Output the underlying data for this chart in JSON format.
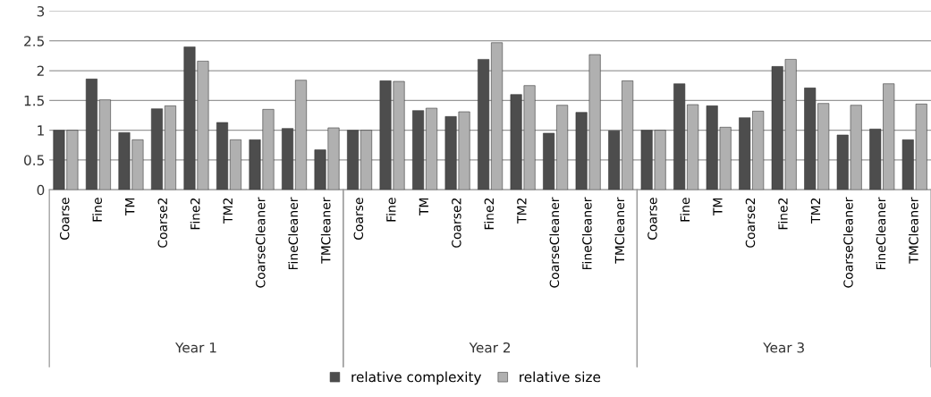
{
  "chart_data": {
    "type": "bar",
    "categories": [
      "Coarse",
      "Fine",
      "TM",
      "Coarse2",
      "Fine2",
      "TM2",
      "CoarseCleaner",
      "FineCleaner",
      "TMCleaner",
      "Coarse",
      "Fine",
      "TM",
      "Coarse2",
      "Fine2",
      "TM2",
      "CoarseCleaner",
      "FineCleaner",
      "TMCleaner",
      "Coarse",
      "Fine",
      "TM",
      "Coarse2",
      "Fine2",
      "TM2",
      "CoarseCleaner",
      "FineCleaner",
      "TMCleaner"
    ],
    "series": [
      {
        "name": "relative complexity",
        "color": "#4d4d4d",
        "values": [
          1.0,
          1.86,
          0.96,
          1.36,
          2.4,
          1.13,
          0.84,
          1.03,
          0.67,
          1.0,
          1.83,
          1.33,
          1.23,
          2.19,
          1.6,
          0.95,
          1.3,
          0.99,
          1.0,
          1.78,
          1.41,
          1.21,
          2.07,
          1.71,
          0.92,
          1.02,
          0.84
        ]
      },
      {
        "name": "relative size",
        "color": "#b0b0b0",
        "values": [
          1.0,
          1.51,
          0.84,
          1.41,
          2.16,
          0.84,
          1.35,
          1.84,
          1.04,
          1.0,
          1.82,
          1.37,
          1.31,
          2.47,
          1.75,
          1.42,
          2.27,
          1.83,
          1.0,
          1.43,
          1.05,
          1.32,
          2.19,
          1.45,
          1.42,
          1.78,
          1.44
        ]
      }
    ],
    "annotations": [
      "Year 1",
      "Year 2",
      "Year 3"
    ],
    "ylim": [
      0,
      3
    ],
    "yticks": [
      0,
      0.5,
      1,
      1.5,
      2,
      2.5,
      3
    ],
    "grid": "y",
    "legend": "bottom"
  }
}
